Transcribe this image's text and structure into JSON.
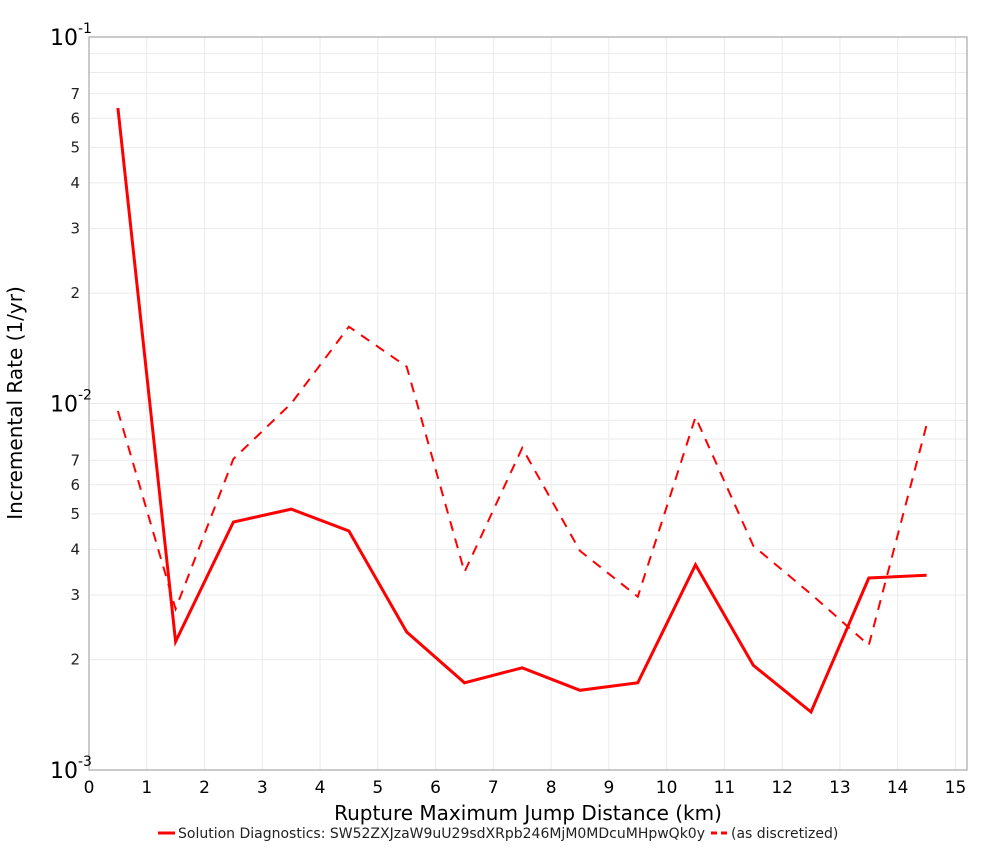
{
  "chart_data": {
    "type": "line",
    "title": "",
    "xlabel": "Rupture Maximum Jump Distance (km)",
    "ylabel": "Incremental Rate (1/yr)",
    "xlim": [
      0,
      15.2
    ],
    "ylim": [
      0.001,
      0.1
    ],
    "yscale": "log",
    "grid": true,
    "legend_position": "bottom",
    "x_ticks": [
      0,
      1,
      2,
      3,
      4,
      5,
      6,
      7,
      8,
      9,
      10,
      11,
      12,
      13,
      14,
      15
    ],
    "y_major_ticks": [
      {
        "value": 0.1,
        "base": "10",
        "exp": "-1"
      },
      {
        "value": 0.01,
        "base": "10",
        "exp": "-2"
      },
      {
        "value": 0.001,
        "base": "10",
        "exp": "-3"
      }
    ],
    "y_minor_labels": [
      "2",
      "3",
      "4",
      "5",
      "6",
      "7"
    ],
    "x": [
      0.5,
      1.5,
      2.5,
      3.5,
      4.5,
      5.5,
      6.5,
      7.5,
      8.5,
      9.5,
      10.5,
      11.5,
      12.5,
      13.5,
      14.5
    ],
    "series": [
      {
        "name": "Solution Diagnostics: SW52ZXJzaW9uU29sdXRpb246MjM0MDcuMHpwQk0y",
        "style": "solid",
        "color": "#ff0000",
        "values": [
          0.064,
          0.00224,
          0.00475,
          0.00515,
          0.00449,
          0.00238,
          0.00173,
          0.0019,
          0.00165,
          0.00173,
          0.00363,
          0.00193,
          0.00144,
          0.00334,
          0.0034
        ]
      },
      {
        "name": "(as discretized)",
        "style": "dashed",
        "color": "#ff0000",
        "values": [
          0.00954,
          0.00275,
          0.00706,
          0.01,
          0.0162,
          0.0126,
          0.00347,
          0.00756,
          0.00396,
          0.00297,
          0.00918,
          0.00409,
          0.00302,
          0.00219,
          0.00874
        ]
      }
    ]
  },
  "legend": {
    "items": [
      {
        "label": "Solution Diagnostics: SW52ZXJzaW9uU29sdXRpb246MjM0MDcuMHpwQk0y",
        "style": "solid"
      },
      {
        "label": "(as discretized)",
        "style": "dashed"
      }
    ]
  },
  "colors": {
    "series": "#ff0000",
    "grid": "#ebebeb",
    "frame": "#a8a8a8",
    "background": "#ffffff"
  }
}
